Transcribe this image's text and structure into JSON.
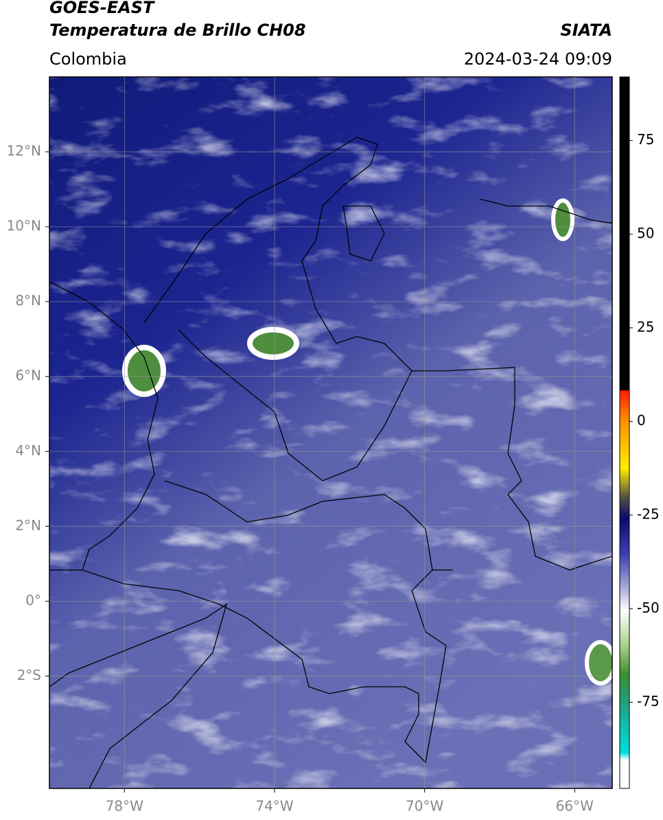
{
  "header": {
    "agency": "GOES-EAST",
    "title": "Temperatura de Brillo CH08",
    "source": "SIATA",
    "region": "Colombia",
    "datetime": "2024-03-24 09:09"
  },
  "map": {
    "lon_range": [
      -80,
      -65
    ],
    "lat_range": [
      -5,
      14
    ],
    "lon_ticks": [
      {
        "value": -78,
        "label": "78°W"
      },
      {
        "value": -74,
        "label": "74°W"
      },
      {
        "value": -70,
        "label": "70°W"
      },
      {
        "value": -66,
        "label": "66°W"
      }
    ],
    "lat_ticks": [
      {
        "value": 12,
        "label": "12°N"
      },
      {
        "value": 10,
        "label": "10°N"
      },
      {
        "value": 8,
        "label": "8°N"
      },
      {
        "value": 6,
        "label": "6°N"
      },
      {
        "value": 4,
        "label": "4°N"
      },
      {
        "value": 2,
        "label": "2°N"
      },
      {
        "value": 0,
        "label": "0°"
      },
      {
        "value": -2,
        "label": "2°S"
      }
    ]
  },
  "colorbar": {
    "range": [
      -98,
      92
    ],
    "ticks": [
      75,
      50,
      25,
      0,
      -25,
      -50,
      -75
    ]
  }
}
